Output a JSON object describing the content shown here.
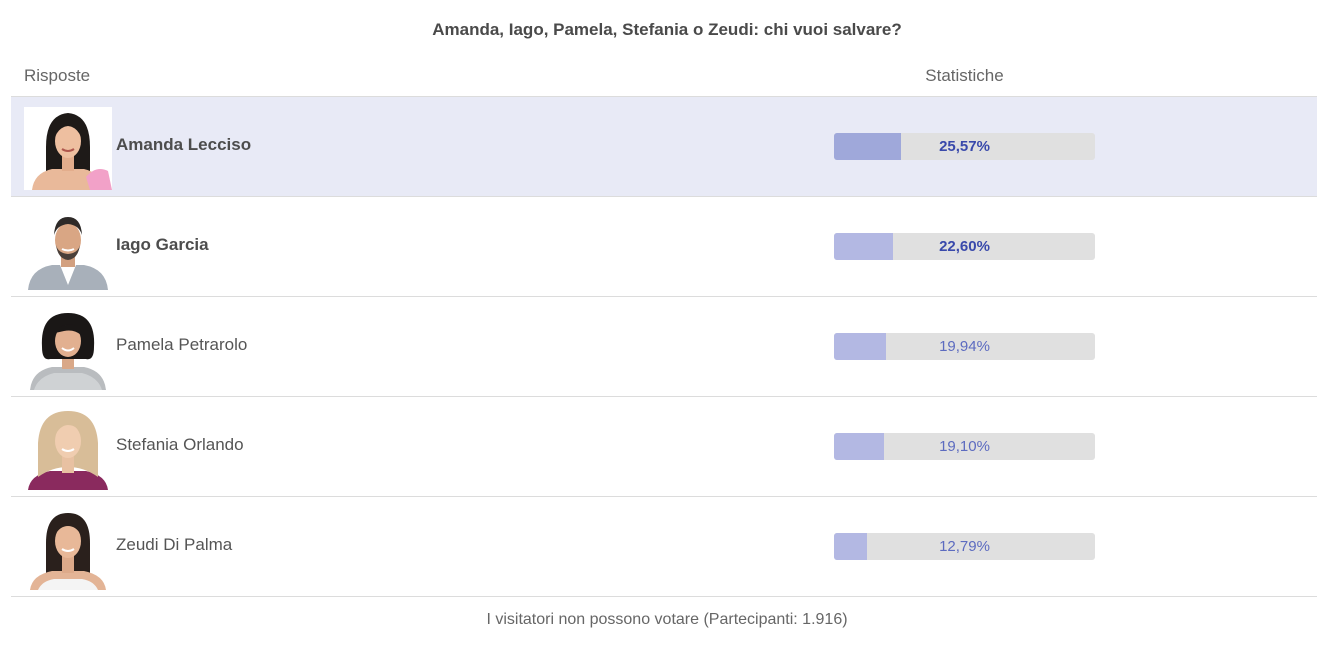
{
  "poll": {
    "question": "Amanda, Iago, Pamela, Stefania o Zeudi: chi vuoi salvare?",
    "headers": {
      "answers": "Risposte",
      "stats": "Statistiche"
    },
    "options": [
      {
        "name": "Amanda Lecciso",
        "percent_label": "25,57%",
        "percent": 25.57,
        "selected": true,
        "leading": true,
        "avatar": "woman-long-dark-hair-portrait"
      },
      {
        "name": "Iago Garcia",
        "percent_label": "22,60%",
        "percent": 22.6,
        "selected": false,
        "leading": true,
        "avatar": "man-beard-portrait"
      },
      {
        "name": "Pamela Petrarolo",
        "percent_label": "19,94%",
        "percent": 19.94,
        "selected": false,
        "leading": false,
        "avatar": "woman-short-dark-hair-portrait"
      },
      {
        "name": "Stefania Orlando",
        "percent_label": "19,10%",
        "percent": 19.1,
        "selected": false,
        "leading": false,
        "avatar": "woman-blonde-hair-portrait"
      },
      {
        "name": "Zeudi Di Palma",
        "percent_label": "12,79%",
        "percent": 12.79,
        "selected": false,
        "leading": false,
        "avatar": "woman-dark-hair-portrait"
      }
    ],
    "footer": "I visitatori non possono votare (Partecipanti: 1.916)"
  },
  "colors": {
    "selected_row_bg": "#e8eaf6",
    "bar_track": "#e0e0e0",
    "bar_fill": "#b3b8e3",
    "bar_fill_selected": "#9fa8da",
    "percent_text": "#5c6bc0"
  }
}
